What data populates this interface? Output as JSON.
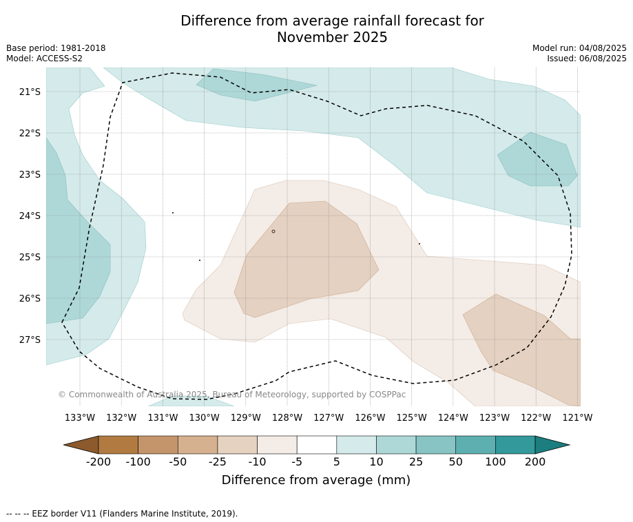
{
  "header": {
    "title_line1": "Difference from average rainfall forecast for",
    "title_line2": "November 2025",
    "base_period": "Base period: 1981-2018",
    "model": "Model: ACCESS-S2",
    "model_run": "Model run: 04/08/2025",
    "issued": "Issued: 06/08/2025"
  },
  "map": {
    "lat_labels": [
      "21°S",
      "22°S",
      "23°S",
      "24°S",
      "25°S",
      "26°S",
      "27°S"
    ],
    "lon_labels": [
      "133°W",
      "132°W",
      "131°W",
      "130°W",
      "129°W",
      "128°W",
      "127°W",
      "126°W",
      "125°W",
      "124°W",
      "123°W",
      "122°W",
      "121°W"
    ],
    "copyright": "© Commonwealth of Australia 2025, Bureau of Meteorology, supported by COSPPac",
    "gridlines": true
  },
  "colorbar": {
    "ticks": [
      "-200",
      "-100",
      "-50",
      "-25",
      "-10",
      "-5",
      "5",
      "10",
      "25",
      "50",
      "100",
      "200"
    ],
    "colors": [
      "#8c5a2c",
      "#b07a40",
      "#c4946a",
      "#d5b18f",
      "#e6d2c0",
      "#f4ece6",
      "#ffffff",
      "#d5eaea",
      "#aed8d8",
      "#88c4c4",
      "#5eb0b0",
      "#33999a",
      "#1c7e7e"
    ],
    "title": "Difference from average (mm)"
  },
  "footer": {
    "eez_note": "-- -- -- EEZ border V11 (Flanders Marine Institute, 2019)."
  }
}
